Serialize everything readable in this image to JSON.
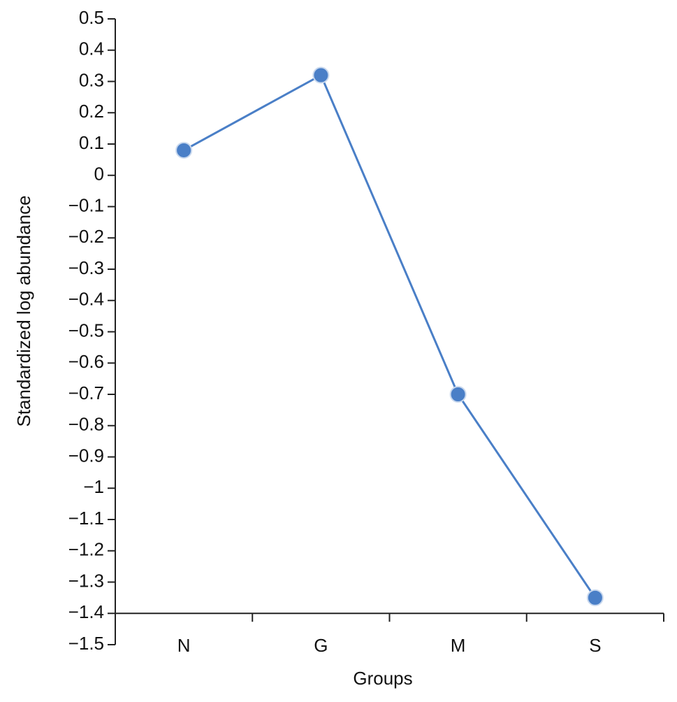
{
  "chart_data": {
    "type": "line",
    "ylabel": "Standardized log abundance",
    "xlabel": "Groups",
    "categories": [
      "N",
      "G",
      "M",
      "S"
    ],
    "values": [
      0.08,
      0.32,
      -0.7,
      -1.35
    ],
    "color": "#4a7fc7",
    "ylim": [
      -1.5,
      0.5
    ],
    "x_axis_position": -1.4,
    "yticks": [
      0.5,
      0.4,
      0.3,
      0.2,
      0.1,
      0,
      {
        "value": -0.1,
        "label": "−0.1"
      },
      {
        "value": -0.2,
        "label": "−0.2"
      },
      {
        "value": -0.3,
        "label": "−0.3"
      },
      {
        "value": -0.4,
        "label": "−0.4"
      },
      {
        "value": -0.5,
        "label": "−0.5"
      },
      {
        "value": -0.6,
        "label": "−0.6"
      },
      {
        "value": -0.7,
        "label": "−0.7"
      },
      {
        "value": -0.8,
        "label": "−0.8"
      },
      {
        "value": -0.9,
        "label": "−0.9"
      },
      {
        "value": -1,
        "label": "−1"
      },
      {
        "value": -1.1,
        "label": "−1.1"
      },
      {
        "value": -1.2,
        "label": "−1.2"
      },
      {
        "value": -1.3,
        "label": "−1.3"
      },
      {
        "value": -1.4,
        "label": "−1.4"
      },
      {
        "value": -1.5,
        "label": "−1.5"
      }
    ]
  }
}
